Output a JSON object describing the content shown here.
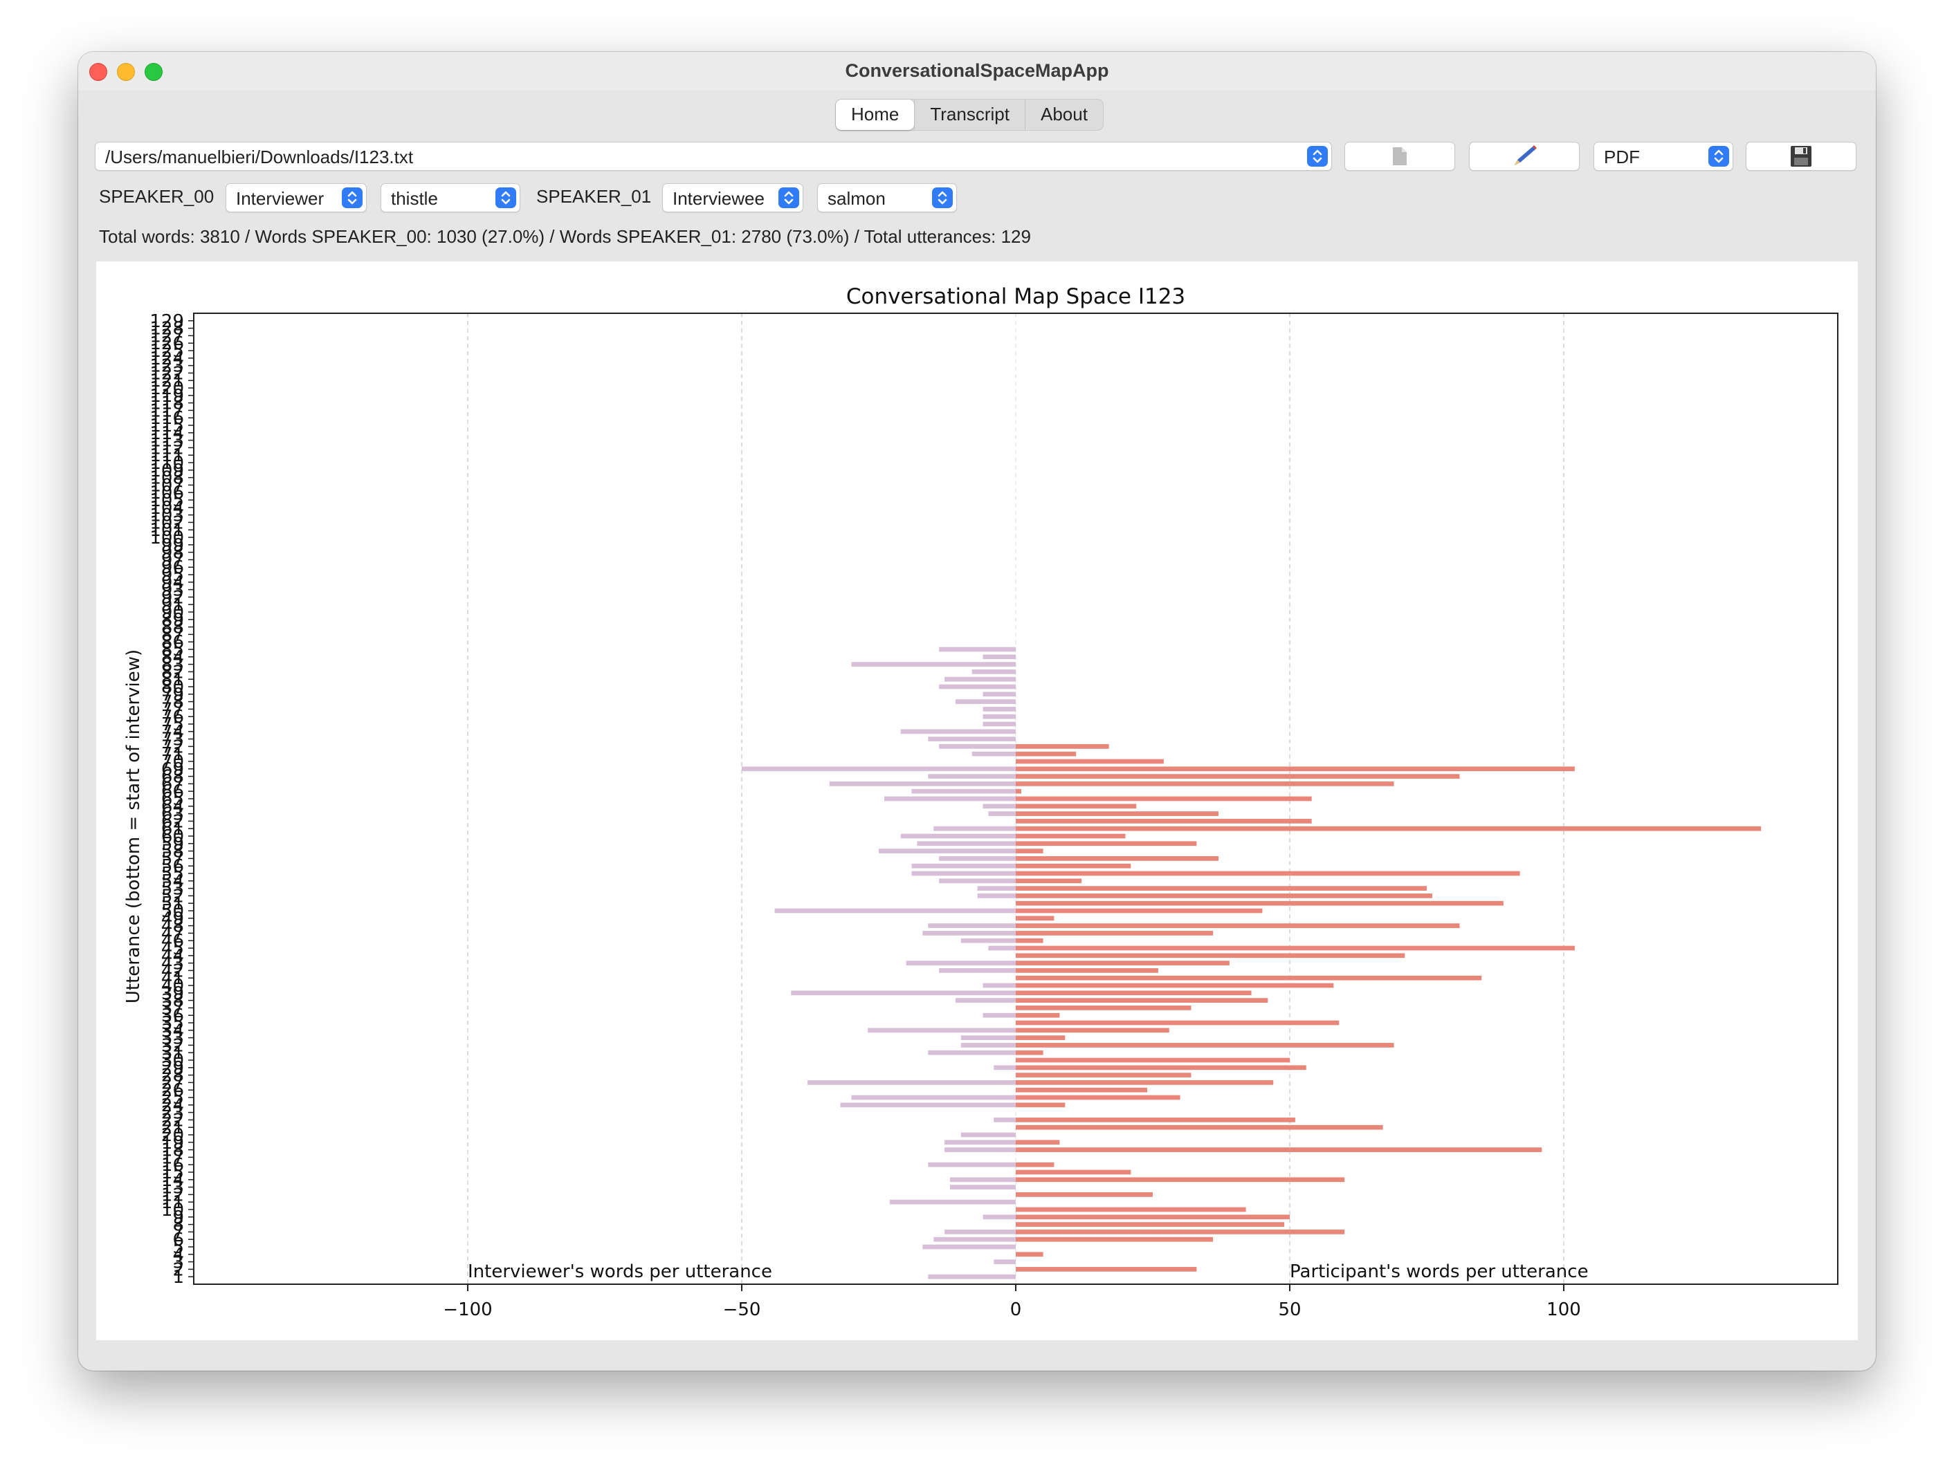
{
  "window": {
    "title": "ConversationalSpaceMapApp"
  },
  "tabs": [
    "Home",
    "Transcript",
    "About"
  ],
  "toolbar": {
    "file_path": "/Users/manuelbieri/Downloads/I123.txt",
    "format": "PDF",
    "icons": [
      "file-icon",
      "pencil-icon",
      "save-icon"
    ]
  },
  "speakers": {
    "speaker0": {
      "label": "SPEAKER_00",
      "role": "Interviewer",
      "color": "thistle"
    },
    "speaker1": {
      "label": "SPEAKER_01",
      "role": "Interviewee",
      "color": "salmon"
    }
  },
  "stats_line": "Total words: 3810 / Words SPEAKER_00: 1030 (27.0%) / Words SPEAKER_01: 2780 (73.0%) / Total utterances: 129",
  "chart_data": {
    "type": "bar",
    "orientation": "horizontal",
    "title": "Conversational Map Space I123",
    "ylabel": "Utterance (bottom = start of interview)",
    "left_annotation": "Interviewer's words per utterance",
    "right_annotation": "Participant's words per utterance",
    "xlim": [
      -150,
      150
    ],
    "ylim": [
      0,
      130
    ],
    "xticks": [
      -100,
      -50,
      0,
      50,
      100
    ],
    "xtick_labels": [
      "−100",
      "−50",
      "0",
      "50",
      "100"
    ],
    "grid": "vertical dashed",
    "colors": {
      "interviewer": "#d8bfd8",
      "participant": "#e8867a"
    },
    "series": [
      {
        "name": "Interviewer",
        "bars": [
          [
            1,
            -16
          ],
          [
            3,
            -4
          ],
          [
            5,
            -17
          ],
          [
            6,
            -15
          ],
          [
            7,
            -13
          ],
          [
            9,
            -6
          ],
          [
            11,
            -23
          ],
          [
            13,
            -12
          ],
          [
            14,
            -12
          ],
          [
            16,
            -16
          ],
          [
            18,
            -13
          ],
          [
            19,
            -13
          ],
          [
            20,
            -10
          ],
          [
            22,
            -4
          ],
          [
            24,
            -32
          ],
          [
            25,
            -30
          ],
          [
            27,
            -38
          ],
          [
            29,
            -4
          ],
          [
            31,
            -16
          ],
          [
            32,
            -10
          ],
          [
            33,
            -10
          ],
          [
            34,
            -27
          ],
          [
            36,
            -6
          ],
          [
            38,
            -11
          ],
          [
            39,
            -41
          ],
          [
            40,
            -6
          ],
          [
            42,
            -14
          ],
          [
            43,
            -20
          ],
          [
            45,
            -5
          ],
          [
            46,
            -10
          ],
          [
            47,
            -17
          ],
          [
            48,
            -16
          ],
          [
            50,
            -44
          ],
          [
            52,
            -7
          ],
          [
            53,
            -7
          ],
          [
            54,
            -14
          ],
          [
            55,
            -19
          ],
          [
            56,
            -19
          ],
          [
            57,
            -14
          ],
          [
            58,
            -25
          ],
          [
            59,
            -18
          ],
          [
            60,
            -21
          ],
          [
            61,
            -15
          ],
          [
            63,
            -5
          ],
          [
            64,
            -6
          ],
          [
            65,
            -24
          ],
          [
            66,
            -19
          ],
          [
            67,
            -34
          ],
          [
            68,
            -16
          ],
          [
            69,
            -50
          ],
          [
            71,
            -8
          ],
          [
            72,
            -14
          ],
          [
            73,
            -16
          ],
          [
            74,
            -21
          ],
          [
            75,
            -6
          ],
          [
            76,
            -6
          ],
          [
            77,
            -6
          ],
          [
            78,
            -11
          ],
          [
            79,
            -6
          ],
          [
            80,
            -14
          ],
          [
            81,
            -13
          ],
          [
            82,
            -8
          ],
          [
            83,
            -30
          ],
          [
            84,
            -6
          ],
          [
            85,
            -14
          ]
        ]
      },
      {
        "name": "Participant",
        "bars": [
          [
            2,
            33
          ],
          [
            4,
            5
          ],
          [
            6,
            36
          ],
          [
            7,
            60
          ],
          [
            8,
            49
          ],
          [
            9,
            50
          ],
          [
            10,
            42
          ],
          [
            12,
            25
          ],
          [
            14,
            60
          ],
          [
            15,
            21
          ],
          [
            16,
            7
          ],
          [
            18,
            96
          ],
          [
            19,
            8
          ],
          [
            21,
            67
          ],
          [
            22,
            51
          ],
          [
            24,
            9
          ],
          [
            25,
            30
          ],
          [
            26,
            24
          ],
          [
            27,
            47
          ],
          [
            28,
            32
          ],
          [
            29,
            53
          ],
          [
            30,
            50
          ],
          [
            31,
            5
          ],
          [
            32,
            69
          ],
          [
            33,
            9
          ],
          [
            34,
            28
          ],
          [
            35,
            59
          ],
          [
            36,
            8
          ],
          [
            37,
            32
          ],
          [
            38,
            46
          ],
          [
            39,
            43
          ],
          [
            40,
            58
          ],
          [
            41,
            85
          ],
          [
            42,
            26
          ],
          [
            43,
            39
          ],
          [
            44,
            71
          ],
          [
            45,
            102
          ],
          [
            46,
            5
          ],
          [
            47,
            36
          ],
          [
            48,
            81
          ],
          [
            49,
            7
          ],
          [
            50,
            45
          ],
          [
            51,
            89
          ],
          [
            52,
            76
          ],
          [
            53,
            75
          ],
          [
            54,
            12
          ],
          [
            55,
            92
          ],
          [
            56,
            21
          ],
          [
            57,
            37
          ],
          [
            58,
            5
          ],
          [
            59,
            33
          ],
          [
            60,
            20
          ],
          [
            61,
            136
          ],
          [
            62,
            54
          ],
          [
            63,
            37
          ],
          [
            64,
            22
          ],
          [
            65,
            54
          ],
          [
            66,
            1
          ],
          [
            67,
            69
          ],
          [
            68,
            81
          ],
          [
            69,
            102
          ],
          [
            70,
            27
          ],
          [
            71,
            11
          ],
          [
            72,
            17
          ]
        ]
      }
    ]
  }
}
